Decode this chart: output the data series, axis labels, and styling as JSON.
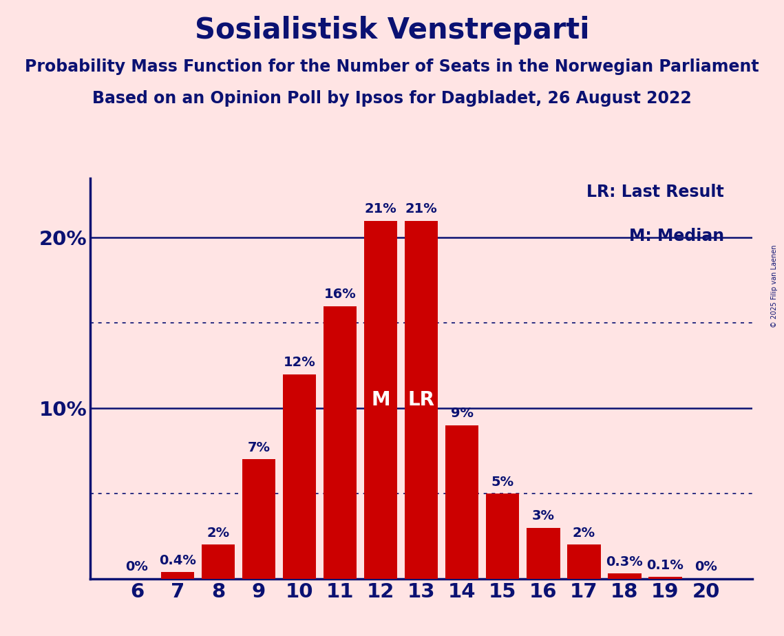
{
  "title": "Sosialistisk Venstreparti",
  "subtitle1": "Probability Mass Function for the Number of Seats in the Norwegian Parliament",
  "subtitle2": "Based on an Opinion Poll by Ipsos for Dagbladet, 26 August 2022",
  "copyright": "© 2025 Filip van Laenen",
  "categories": [
    6,
    7,
    8,
    9,
    10,
    11,
    12,
    13,
    14,
    15,
    16,
    17,
    18,
    19,
    20
  ],
  "values": [
    0.0,
    0.4,
    2.0,
    7.0,
    12.0,
    16.0,
    21.0,
    21.0,
    9.0,
    5.0,
    3.0,
    2.0,
    0.3,
    0.1,
    0.0
  ],
  "labels": [
    "0%",
    "0.4%",
    "2%",
    "7%",
    "12%",
    "16%",
    "21%",
    "21%",
    "9%",
    "5%",
    "3%",
    "2%",
    "0.3%",
    "0.1%",
    "0%"
  ],
  "bar_color": "#CC0000",
  "background_color": "#FFE4E4",
  "axis_color": "#0A1172",
  "text_color": "#0A1172",
  "ylim": [
    0,
    23.5
  ],
  "median_seat": 12,
  "last_result_seat": 13,
  "solid_gridlines": [
    10,
    20
  ],
  "dotted_gridlines": [
    5,
    15
  ],
  "legend_lr": "LR: Last Result",
  "legend_m": "M: Median",
  "title_fontsize": 30,
  "subtitle_fontsize": 17,
  "bar_label_fontsize": 14,
  "tick_fontsize": 21,
  "legend_fontsize": 17,
  "marker_fontsize": 20
}
